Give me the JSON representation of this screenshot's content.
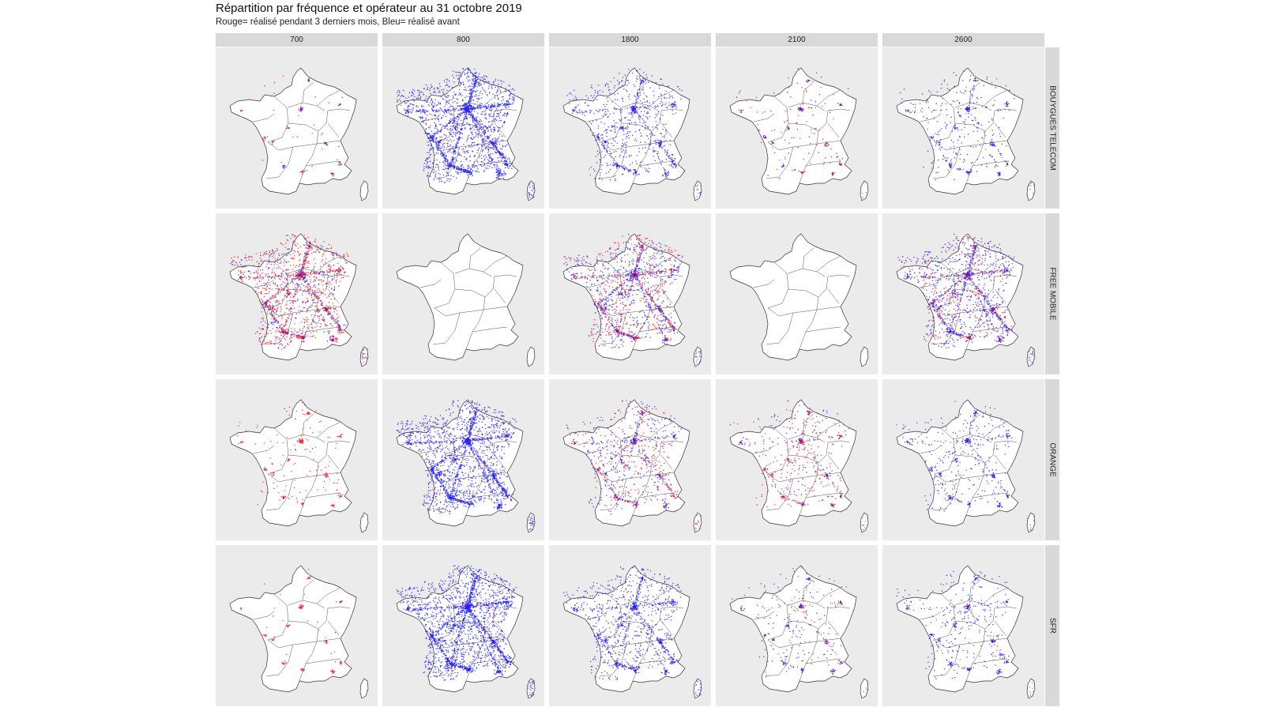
{
  "title": "Répartition par fréquence et opérateur au 31 octobre 2019",
  "subtitle": "Rouge= réalisé pendant 3 derniers mois, Bleu= réalisé avant",
  "frequencies": [
    "700",
    "800",
    "1800",
    "2100",
    "2600"
  ],
  "operators": [
    "BOUYGUES TELECOM",
    "FREE MOBILE",
    "ORANGE",
    "SFR"
  ],
  "legend": {
    "red": "réalisé pendant 3 derniers mois",
    "blue": "réalisé avant"
  },
  "colors": {
    "recent": "#ff1a1a",
    "before": "#1f1fff",
    "panel_bg": "#ebebeb",
    "strip_bg": "#d9d9d9",
    "map_fill": "#ffffff",
    "outline": "#333333"
  },
  "panels": [
    [
      {
        "density": 0.012,
        "red": 0.6
      },
      {
        "density": 0.85,
        "red": 0.04
      },
      {
        "density": 0.32,
        "red": 0.06
      },
      {
        "density": 0.05,
        "red": 0.45
      },
      {
        "density": 0.14,
        "red": 0.08
      }
    ],
    [
      {
        "density": 0.65,
        "red": 0.62
      },
      {
        "density": 0,
        "red": 0
      },
      {
        "density": 0.6,
        "red": 0.42
      },
      {
        "density": 0,
        "red": 0
      },
      {
        "density": 0.6,
        "red": 0.32
      }
    ],
    [
      {
        "density": 0.05,
        "red": 0.92
      },
      {
        "density": 0.82,
        "red": 0.05
      },
      {
        "density": 0.32,
        "red": 0.42
      },
      {
        "density": 0.18,
        "red": 0.6
      },
      {
        "density": 0.15,
        "red": 0.1
      }
    ],
    [
      {
        "density": 0.008,
        "red": 0.9
      },
      {
        "density": 0.9,
        "red": 0.03
      },
      {
        "density": 0.42,
        "red": 0.06
      },
      {
        "density": 0.1,
        "red": 0.3
      },
      {
        "density": 0.14,
        "red": 0.12
      }
    ]
  ]
}
